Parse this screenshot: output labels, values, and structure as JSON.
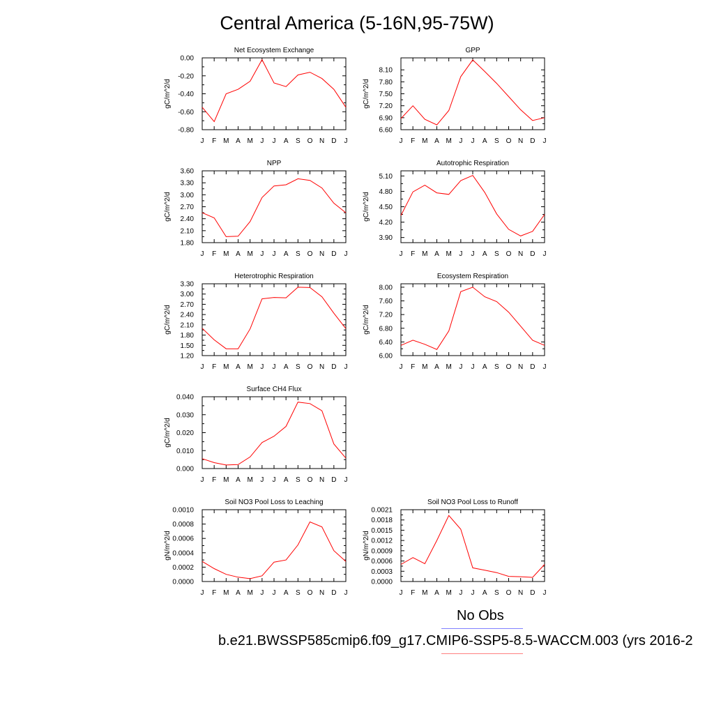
{
  "title": "Central America (5-16N,95-75W)",
  "legend": {
    "obs_label": "No Obs",
    "run_label": "b.e21.BWSSP585cmip6.f09_g17.CMIP6-SSP5-8.5-WACCM.003 (yrs 2016-2",
    "obs_color": "#7f7fff",
    "model_color": "#ff7f7f"
  },
  "line_color": "#ff0000",
  "chart_data": [
    {
      "type": "line",
      "title": "Net Ecosystem Exchange",
      "ylabel": "gC/m^2/d",
      "categories": [
        "J",
        "F",
        "M",
        "A",
        "M",
        "J",
        "J",
        "A",
        "S",
        "O",
        "N",
        "D",
        "J"
      ],
      "ylim": [
        -0.8,
        0.0
      ],
      "yticks": [
        "0.00",
        "-0.20",
        "-0.40",
        "-0.60",
        "-0.80"
      ],
      "ytick_values": [
        0.0,
        -0.2,
        -0.4,
        -0.6,
        -0.8
      ],
      "values": [
        -0.55,
        -0.71,
        -0.4,
        -0.35,
        -0.26,
        -0.02,
        -0.28,
        -0.32,
        -0.19,
        -0.16,
        -0.23,
        -0.35,
        -0.55
      ]
    },
    {
      "type": "line",
      "title": "GPP",
      "ylabel": "gC/m^2/d",
      "categories": [
        "J",
        "F",
        "M",
        "A",
        "M",
        "J",
        "J",
        "A",
        "S",
        "O",
        "N",
        "D",
        "J"
      ],
      "ylim": [
        6.6,
        8.4
      ],
      "yticks": [
        "8.10",
        "7.80",
        "7.50",
        "7.20",
        "6.90",
        "6.60"
      ],
      "ytick_values": [
        8.1,
        7.8,
        7.5,
        7.2,
        6.9,
        6.6
      ],
      "values": [
        6.88,
        7.2,
        6.86,
        6.72,
        7.08,
        7.93,
        8.35,
        8.06,
        7.76,
        7.43,
        7.1,
        6.83,
        6.9
      ]
    },
    {
      "type": "line",
      "title": "NPP",
      "ylabel": "gC/m^2/d",
      "categories": [
        "J",
        "F",
        "M",
        "A",
        "M",
        "J",
        "J",
        "A",
        "S",
        "O",
        "N",
        "D",
        "J"
      ],
      "ylim": [
        1.8,
        3.6
      ],
      "yticks": [
        "3.60",
        "3.30",
        "3.00",
        "2.70",
        "2.40",
        "2.10",
        "1.80"
      ],
      "ytick_values": [
        3.6,
        3.3,
        3.0,
        2.7,
        2.4,
        2.1,
        1.8
      ],
      "values": [
        2.55,
        2.42,
        1.95,
        1.96,
        2.33,
        2.93,
        3.22,
        3.25,
        3.4,
        3.36,
        3.17,
        2.79,
        2.55
      ]
    },
    {
      "type": "line",
      "title": "Autotrophic Respiration",
      "ylabel": "gC/m^2/d",
      "categories": [
        "J",
        "F",
        "M",
        "A",
        "M",
        "J",
        "J",
        "A",
        "S",
        "O",
        "N",
        "D",
        "J"
      ],
      "ylim": [
        3.8,
        5.2
      ],
      "yticks": [
        "5.10",
        "4.80",
        "4.50",
        "4.20",
        "3.90"
      ],
      "ytick_values": [
        5.1,
        4.8,
        4.5,
        4.2,
        3.9
      ],
      "values": [
        4.33,
        4.79,
        4.92,
        4.77,
        4.74,
        5.01,
        5.11,
        4.78,
        4.36,
        4.06,
        3.93,
        4.02,
        4.35
      ]
    },
    {
      "type": "line",
      "title": "Heterotrophic Respiration",
      "ylabel": "gC/m^2/d",
      "categories": [
        "J",
        "F",
        "M",
        "A",
        "M",
        "J",
        "J",
        "A",
        "S",
        "O",
        "N",
        "D",
        "J"
      ],
      "ylim": [
        1.2,
        3.3
      ],
      "yticks": [
        "3.30",
        "3.00",
        "2.70",
        "2.40",
        "2.10",
        "1.80",
        "1.50",
        "1.20"
      ],
      "ytick_values": [
        3.3,
        3.0,
        2.7,
        2.4,
        2.1,
        1.8,
        1.5,
        1.2
      ],
      "values": [
        2.0,
        1.66,
        1.4,
        1.4,
        1.98,
        2.86,
        2.9,
        2.89,
        3.2,
        3.19,
        2.92,
        2.44,
        1.99
      ]
    },
    {
      "type": "line",
      "title": "Ecosystem Respiration",
      "ylabel": "gC/m^2/d",
      "categories": [
        "J",
        "F",
        "M",
        "A",
        "M",
        "J",
        "J",
        "A",
        "S",
        "O",
        "N",
        "D",
        "J"
      ],
      "ylim": [
        6.0,
        8.1
      ],
      "yticks": [
        "8.00",
        "7.60",
        "7.20",
        "6.80",
        "6.40",
        "6.00"
      ],
      "ytick_values": [
        8.0,
        7.6,
        7.2,
        6.8,
        6.4,
        6.0
      ],
      "values": [
        6.3,
        6.45,
        6.33,
        6.18,
        6.72,
        7.87,
        8.0,
        7.72,
        7.58,
        7.27,
        6.86,
        6.45,
        6.3
      ]
    },
    {
      "type": "line",
      "title": "Surface CH4 Flux",
      "ylabel": "gC/m^2/d",
      "categories": [
        "J",
        "F",
        "M",
        "A",
        "M",
        "J",
        "J",
        "A",
        "S",
        "O",
        "N",
        "D",
        "J"
      ],
      "ylim": [
        0.0,
        0.04
      ],
      "yticks": [
        "0.040",
        "0.030",
        "0.020",
        "0.010",
        "0.000"
      ],
      "ytick_values": [
        0.04,
        0.03,
        0.02,
        0.01,
        0.0
      ],
      "values": [
        0.0055,
        0.0033,
        0.002,
        0.0022,
        0.0065,
        0.0145,
        0.018,
        0.0235,
        0.037,
        0.0362,
        0.0322,
        0.0137,
        0.0058
      ]
    },
    {
      "type": "line",
      "title": "Soil NO3 Pool Loss to Leaching",
      "ylabel": "gN/m^2/d",
      "categories": [
        "J",
        "F",
        "M",
        "A",
        "M",
        "J",
        "J",
        "A",
        "S",
        "O",
        "N",
        "D",
        "J"
      ],
      "ylim": [
        0.0,
        0.001
      ],
      "yticks": [
        "0.0010",
        "0.0008",
        "0.0006",
        "0.0004",
        "0.0002",
        "0.0000"
      ],
      "ytick_values": [
        0.001,
        0.0008,
        0.0006,
        0.0004,
        0.0002,
        0.0
      ],
      "values": [
        0.00028,
        0.00018,
        0.0001,
        6e-05,
        4e-05,
        8e-05,
        0.00027,
        0.0003,
        0.00051,
        0.00083,
        0.00076,
        0.00043,
        0.00028
      ]
    },
    {
      "type": "line",
      "title": "Soil NO3 Pool Loss to Runoff",
      "ylabel": "gN/m^2/d",
      "categories": [
        "J",
        "F",
        "M",
        "A",
        "M",
        "J",
        "J",
        "A",
        "S",
        "O",
        "N",
        "D",
        "J"
      ],
      "ylim": [
        0.0,
        0.0021
      ],
      "yticks": [
        "0.0021",
        "0.0018",
        "0.0015",
        "0.0012",
        "0.0009",
        "0.0006",
        "0.0003",
        "0.0000"
      ],
      "ytick_values": [
        0.0021,
        0.0018,
        0.0015,
        0.0012,
        0.0009,
        0.0006,
        0.0003,
        0.0
      ],
      "values": [
        0.0005,
        0.0007,
        0.00052,
        0.0012,
        0.00193,
        0.00153,
        0.0004,
        0.00033,
        0.00026,
        0.00015,
        0.00014,
        0.00012,
        0.0005
      ]
    }
  ]
}
